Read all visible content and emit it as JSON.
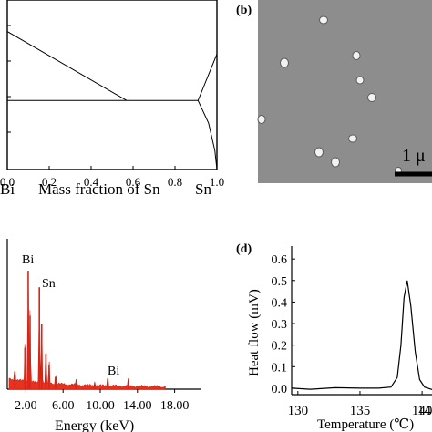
{
  "panels": {
    "a": {
      "xlabel_left": "Bi",
      "xlabel_center": "Mass fraction of Sn",
      "xlabel_right": "Sn",
      "x_ticks": [
        "0.0",
        "0.2",
        "0.4",
        "0.6",
        "0.8",
        "1.0"
      ]
    },
    "b": {
      "label": "(b)",
      "scale_text": "1 μ"
    },
    "c": {
      "peak_labels": [
        "Bi",
        "Sn",
        "Bi"
      ],
      "x_ticks": [
        "2.00",
        "6.00",
        "10.00",
        "14.00",
        "18.00"
      ],
      "xlabel": "Energy (keV)"
    },
    "d": {
      "label": "(d)",
      "ylabel": "Heat flow (mV)",
      "xlabel": "Temperature (℃)",
      "x_ticks": [
        "130",
        "135",
        "140",
        "14"
      ],
      "y_ticks": [
        "0.0",
        "0.1",
        "0.2",
        "0.3",
        "0.4",
        "0.5",
        "0.6"
      ]
    }
  },
  "chart_data": [
    {
      "type": "line",
      "panel": "a",
      "xlabel": "Mass fraction of Sn",
      "xlim": [
        0,
        1
      ],
      "x_ticks": [
        0.0,
        0.2,
        0.4,
        0.6,
        0.8,
        1.0
      ],
      "series": [
        {
          "x": [
            0.0,
            0.57
          ],
          "y": [
            0.86,
            0.43
          ]
        },
        {
          "x": [
            0.57,
            0.91,
            1.0
          ],
          "y": [
            0.43,
            0.43,
            0.72
          ]
        },
        {
          "x": [
            0.0,
            0.57
          ],
          "y": [
            0.43,
            0.43
          ]
        },
        {
          "x": [
            0.91,
            0.96,
            0.99,
            1.0
          ],
          "y": [
            0.43,
            0.29,
            0.12,
            0.0
          ]
        }
      ]
    },
    {
      "type": "bar",
      "panel": "c",
      "xlabel": "Energy (keV)",
      "xlim": [
        0,
        20
      ],
      "x_ticks": [
        2.0,
        6.0,
        10.0,
        14.0,
        18.0
      ],
      "peaks": [
        {
          "x": 0.8,
          "y": 0.12
        },
        {
          "x": 1.9,
          "y": 0.35
        },
        {
          "x": 2.25,
          "y": 1.0
        },
        {
          "x": 2.45,
          "y": 0.62
        },
        {
          "x": 3.45,
          "y": 0.86
        },
        {
          "x": 3.7,
          "y": 0.55
        },
        {
          "x": 4.15,
          "y": 0.3
        },
        {
          "x": 4.5,
          "y": 0.2
        },
        {
          "x": 5.2,
          "y": 0.1
        },
        {
          "x": 7.4,
          "y": 0.05
        },
        {
          "x": 9.4,
          "y": 0.04
        },
        {
          "x": 10.8,
          "y": 0.09
        },
        {
          "x": 13.0,
          "y": 0.06
        }
      ]
    },
    {
      "type": "line",
      "panel": "d",
      "xlabel": "Temperature (℃)",
      "ylabel": "Heat flow (mV)",
      "xlim": [
        129.5,
        143
      ],
      "ylim": [
        -0.03,
        0.66
      ],
      "series": [
        {
          "x": [
            129.5,
            131,
            133,
            135,
            136.5,
            137.5,
            138.0,
            138.3,
            138.55,
            138.8,
            139.1,
            139.45,
            139.8,
            140.2,
            141,
            142,
            143
          ],
          "y": [
            0.0,
            -0.005,
            0.002,
            0.0,
            0.0,
            0.005,
            0.05,
            0.2,
            0.42,
            0.5,
            0.38,
            0.17,
            0.04,
            0.005,
            -0.01,
            0.0,
            0.0
          ]
        }
      ]
    }
  ]
}
